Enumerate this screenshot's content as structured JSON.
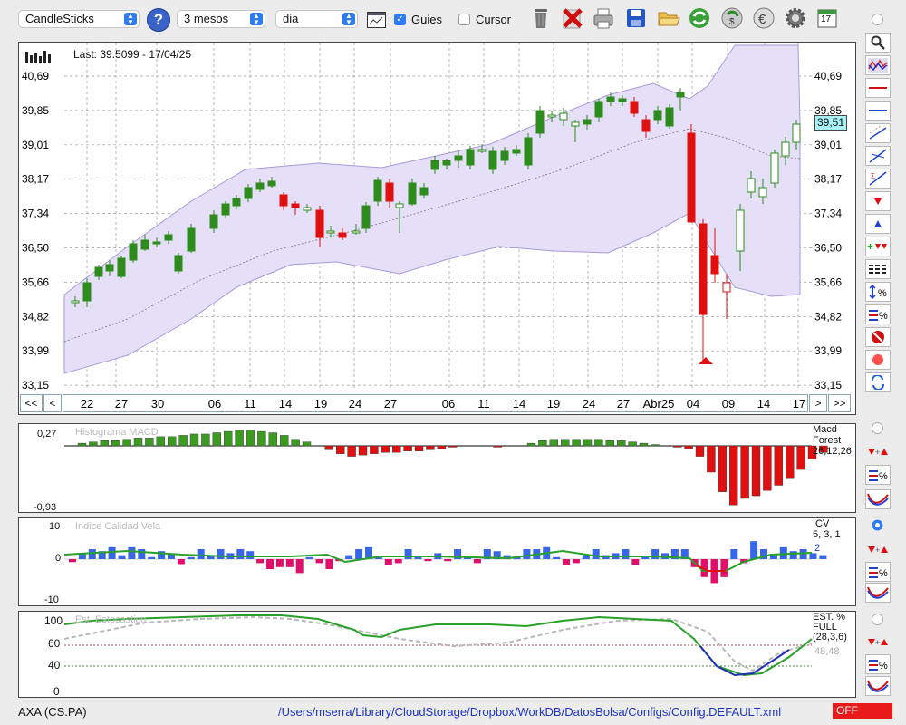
{
  "toolbar": {
    "chart_type": "CandleSticks",
    "period": "3 mesos",
    "interval": "dia",
    "guides_label": "Guies",
    "guides_checked": true,
    "cursor_label": "Cursor",
    "cursor_checked": false,
    "calendar_day": "17"
  },
  "main_chart": {
    "last_label": "Last: 39.5099 - 17/04/25",
    "price_badge": "39,51",
    "y_ticks_left": [
      "40,69",
      "39,85",
      "39,01",
      "38,17",
      "37,34",
      "36,50",
      "35,66",
      "34,82",
      "33,99",
      "33,15"
    ],
    "y_ticks_right": [
      "40,69",
      "39,85",
      "39,01",
      "38,17",
      "37,34",
      "36,50",
      "35,66",
      "34,82",
      "33,99",
      "33,15"
    ],
    "x_labels": [
      "22",
      "27",
      "30",
      "06",
      "11",
      "14",
      "19",
      "24",
      "27",
      "06",
      "11",
      "14",
      "19",
      "24",
      "27",
      "Abr25",
      "04",
      "09",
      "14",
      "17"
    ],
    "nav": {
      "first": "<<",
      "prev": "<",
      "next": ">",
      "last": ">>"
    }
  },
  "macd_panel": {
    "title": "Histograma MACD",
    "y_top": "0,27",
    "y_bottom": "-0,93",
    "legend_name": "Macd",
    "legend_sub": "Forest",
    "legend_params": "26,12,26"
  },
  "icv_panel": {
    "title": "Indice Calidad Vela",
    "y_top": "10",
    "y_mid": "0",
    "y_bottom": "-10",
    "legend_name": "ICV",
    "legend_params": "5, 3, 1",
    "legend_value": "2"
  },
  "stoch_panel": {
    "title": "Est. Estocastico",
    "y_100": "100",
    "y_60": "60",
    "y_40": "40",
    "y_0": "0",
    "legend_name": "EST. %",
    "legend_sub": "FULL",
    "legend_params": "(28,3,6)",
    "legend_value": "48,48"
  },
  "status": {
    "ticker": "AXA (CS.PA)",
    "config_path": "/Users/mserra/Library/CloudStorage/Dropbox/WorkDB/DatosBolsa/Configs/Config.DEFAULT.xml",
    "off_badge": "OFF"
  },
  "colors": {
    "bull": "#2e8b1e",
    "bear": "#e01010",
    "band_fill": "#e5dff8",
    "band_line": "#a79bd9",
    "accent": "#2d7cf6",
    "macd_pos": "#3c9a22",
    "macd_neg": "#e01010",
    "icv_pos": "#3866e8",
    "icv_neg": "#e0106a",
    "icv_line": "#28a02a",
    "stoch_k": "#28a02a",
    "stoch_k_low": "#2030b0",
    "stoch_d": "#b8b8b8"
  }
}
